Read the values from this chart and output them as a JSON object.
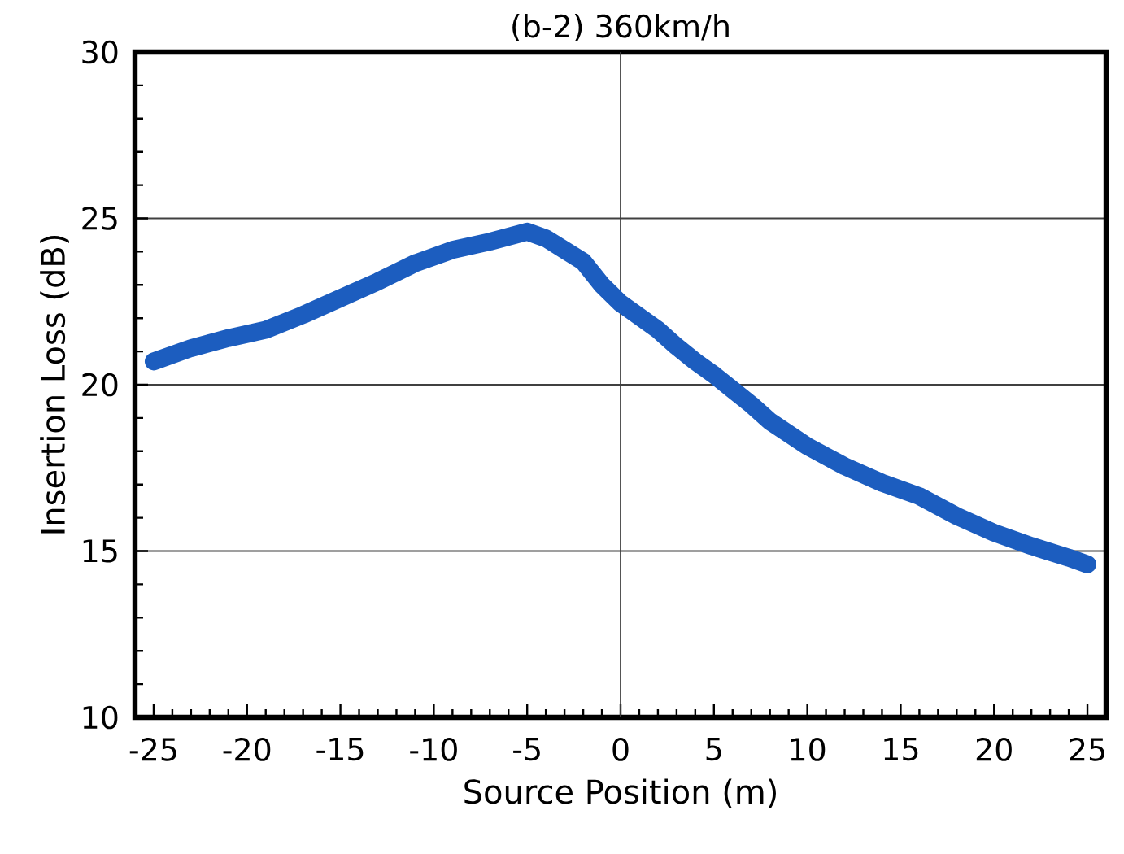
{
  "chart_data": {
    "type": "line",
    "title": "(b-2) 360km/h",
    "xlabel": "Source Position (m)",
    "ylabel": "Insertion Loss (dB)",
    "x": [
      -25,
      -23,
      -21,
      -19,
      -17,
      -15,
      -13,
      -11,
      -9,
      -7,
      -5,
      -4,
      -3,
      -2,
      -1,
      0,
      1,
      2,
      3,
      4,
      5,
      6,
      7,
      8,
      10,
      12,
      14,
      16,
      18,
      20,
      22,
      24,
      25
    ],
    "values": [
      20.7,
      21.1,
      21.4,
      21.65,
      22.1,
      22.6,
      23.1,
      23.65,
      24.05,
      24.3,
      24.6,
      24.4,
      24.05,
      23.7,
      23.0,
      22.45,
      22.05,
      21.65,
      21.15,
      20.7,
      20.3,
      19.85,
      19.4,
      18.9,
      18.15,
      17.55,
      17.05,
      16.65,
      16.05,
      15.55,
      15.15,
      14.8,
      14.6
    ],
    "color": "#1c5dbf",
    "xlim": [
      -26,
      26
    ],
    "ylim": [
      10,
      30
    ],
    "xticks": [
      -25,
      -20,
      -15,
      -10,
      -5,
      0,
      5,
      10,
      15,
      20,
      25
    ],
    "yticks": [
      10,
      15,
      20,
      25,
      30
    ],
    "grid": "y",
    "ref_lines": [
      {
        "axis": "x",
        "value": 0
      }
    ]
  }
}
